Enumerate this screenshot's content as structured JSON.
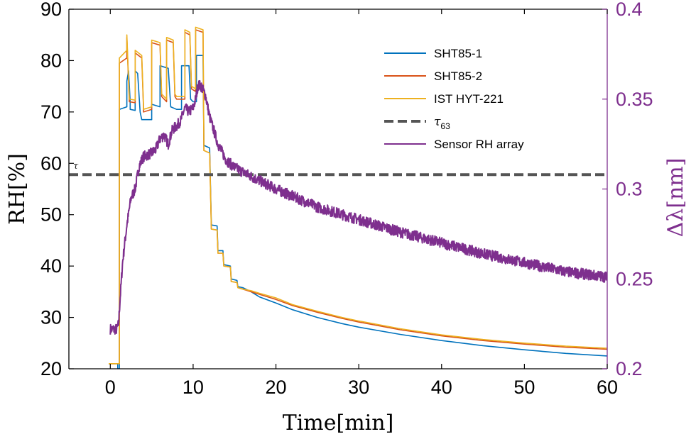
{
  "chart_data": {
    "type": "line",
    "xlabel": "Time[min]",
    "ylabel_left": "RH[%]",
    "ylabel_right": "Δλ[nm]",
    "xlim": [
      -5,
      60
    ],
    "ylim_left": [
      20,
      90
    ],
    "ylim_right": [
      0.2,
      0.4
    ],
    "x_ticks": [
      0,
      10,
      20,
      30,
      40,
      50,
      60
    ],
    "y_ticks_left": [
      20,
      30,
      40,
      50,
      60,
      70,
      80,
      90
    ],
    "y_ticks_right": [
      0.2,
      0.25,
      0.3,
      0.35,
      0.4
    ],
    "y_tick_labels_right": [
      "0.2",
      "0.25",
      "0.3",
      "0.35",
      "0.4"
    ],
    "legend_placement": "top-right",
    "grid": false,
    "annotation": "τ",
    "series": [
      {
        "name": "SHT85-1",
        "axis": "left",
        "color": "#0072bd",
        "points": [
          [
            -0.2,
            21
          ],
          [
            0.9,
            21
          ],
          [
            0.9,
            20
          ],
          [
            1.1,
            20
          ],
          [
            1.1,
            70.5
          ],
          [
            2,
            71
          ],
          [
            2,
            76
          ],
          [
            2.2,
            78
          ],
          [
            2.4,
            72
          ],
          [
            2.4,
            70.5
          ],
          [
            3,
            70.3
          ],
          [
            3,
            78
          ],
          [
            3.3,
            77.5
          ],
          [
            3.6,
            70
          ],
          [
            3.8,
            68.5
          ],
          [
            5,
            68.5
          ],
          [
            5,
            71.5
          ],
          [
            6,
            71
          ],
          [
            6,
            79
          ],
          [
            7,
            78.5
          ],
          [
            7.3,
            71
          ],
          [
            8,
            70.5
          ],
          [
            8.6,
            70.5
          ],
          [
            8.6,
            79
          ],
          [
            9.5,
            79
          ],
          [
            9.7,
            72.5
          ],
          [
            10,
            72
          ],
          [
            10.4,
            72
          ],
          [
            10.4,
            81
          ],
          [
            11.2,
            81
          ],
          [
            11.3,
            63.5
          ],
          [
            12,
            63
          ],
          [
            12.2,
            48
          ],
          [
            12.9,
            47.8
          ],
          [
            13,
            43
          ],
          [
            13.6,
            43
          ],
          [
            13.7,
            40.3
          ],
          [
            14.5,
            40
          ],
          [
            14.6,
            37.5
          ],
          [
            15.3,
            37.2
          ],
          [
            15.4,
            36
          ],
          [
            16,
            35.8
          ],
          [
            17,
            35
          ],
          [
            18,
            34
          ],
          [
            20,
            32.8
          ],
          [
            22,
            31.5
          ],
          [
            25,
            30
          ],
          [
            28,
            28.8
          ],
          [
            30,
            28.1
          ],
          [
            35,
            26.7
          ],
          [
            40,
            25.5
          ],
          [
            45,
            24.5
          ],
          [
            50,
            23.7
          ],
          [
            55,
            23
          ],
          [
            60,
            22.5
          ]
        ]
      },
      {
        "name": "SHT85-2",
        "axis": "left",
        "color": "#d95319",
        "points": [
          [
            -0.2,
            21
          ],
          [
            1.1,
            21
          ],
          [
            1.1,
            79.5
          ],
          [
            2,
            80.5
          ],
          [
            2,
            84.5
          ],
          [
            2.3,
            72
          ],
          [
            3,
            71.8
          ],
          [
            3,
            81.5
          ],
          [
            3.8,
            80.5
          ],
          [
            4,
            71
          ],
          [
            4,
            70
          ],
          [
            5,
            70.5
          ],
          [
            5,
            83.5
          ],
          [
            6,
            83
          ],
          [
            6.2,
            73
          ],
          [
            6.8,
            72
          ],
          [
            6.8,
            84
          ],
          [
            7.6,
            83.5
          ],
          [
            7.8,
            73
          ],
          [
            8,
            72.5
          ],
          [
            9,
            72.5
          ],
          [
            9,
            85.5
          ],
          [
            9.6,
            85
          ],
          [
            9.8,
            74.5
          ],
          [
            10.3,
            74
          ],
          [
            10.3,
            86
          ],
          [
            11.2,
            85.5
          ],
          [
            11.3,
            62.5
          ],
          [
            12,
            62
          ],
          [
            12.2,
            47.2
          ],
          [
            12.9,
            47
          ],
          [
            13,
            42.5
          ],
          [
            13.6,
            42.5
          ],
          [
            13.7,
            40
          ],
          [
            14.5,
            39.8
          ],
          [
            14.6,
            37
          ],
          [
            15.3,
            36.8
          ],
          [
            15.4,
            35.8
          ],
          [
            16,
            35.5
          ],
          [
            17,
            35
          ],
          [
            18,
            34.5
          ],
          [
            20,
            33.5
          ],
          [
            22,
            32.3
          ],
          [
            25,
            31
          ],
          [
            28,
            29.8
          ],
          [
            30,
            29.1
          ],
          [
            35,
            27.6
          ],
          [
            40,
            26.4
          ],
          [
            45,
            25.5
          ],
          [
            50,
            24.8
          ],
          [
            55,
            24.2
          ],
          [
            60,
            23.8
          ]
        ]
      },
      {
        "name": "IST HYT-221",
        "axis": "left",
        "color": "#edb120",
        "points": [
          [
            -0.2,
            21
          ],
          [
            1.1,
            21
          ],
          [
            1.1,
            80.5
          ],
          [
            2,
            82
          ],
          [
            2,
            85
          ],
          [
            2.3,
            72.5
          ],
          [
            3,
            72.3
          ],
          [
            3,
            82
          ],
          [
            3.8,
            81
          ],
          [
            4,
            71.5
          ],
          [
            4,
            70.5
          ],
          [
            5,
            71
          ],
          [
            5,
            84
          ],
          [
            6,
            83.5
          ],
          [
            6.2,
            73.5
          ],
          [
            6.8,
            72.5
          ],
          [
            6.8,
            84.5
          ],
          [
            7.6,
            84
          ],
          [
            7.8,
            73.5
          ],
          [
            8,
            73
          ],
          [
            9,
            73
          ],
          [
            9,
            86
          ],
          [
            9.6,
            85.5
          ],
          [
            9.8,
            75
          ],
          [
            10.3,
            74.5
          ],
          [
            10.3,
            86.5
          ],
          [
            11.2,
            86
          ],
          [
            11.3,
            62.5
          ],
          [
            12,
            62
          ],
          [
            12.2,
            47.2
          ],
          [
            12.9,
            47
          ],
          [
            13,
            42.5
          ],
          [
            13.6,
            42.5
          ],
          [
            13.7,
            40
          ],
          [
            14.5,
            39.8
          ],
          [
            14.6,
            37
          ],
          [
            15.3,
            36.8
          ],
          [
            15.4,
            35.8
          ],
          [
            16,
            35.5
          ],
          [
            17,
            35.2
          ],
          [
            18,
            34.7
          ],
          [
            20,
            33.8
          ],
          [
            22,
            32.5
          ],
          [
            25,
            31.2
          ],
          [
            28,
            30
          ],
          [
            30,
            29.3
          ],
          [
            35,
            27.8
          ],
          [
            40,
            26.6
          ],
          [
            45,
            25.7
          ],
          [
            50,
            25
          ],
          [
            55,
            24.4
          ],
          [
            60,
            24
          ]
        ]
      },
      {
        "name": "τ63",
        "axis": "left",
        "color": "#555555",
        "dashed": true,
        "points": [
          [
            -5,
            57.8
          ],
          [
            60,
            57.8
          ]
        ]
      },
      {
        "name": "Sensor RH array",
        "axis": "right",
        "color": "#7e2f8e",
        "points": [
          [
            0,
            0.222
          ],
          [
            0.8,
            0.222
          ],
          [
            1,
            0.225
          ],
          [
            1.2,
            0.24
          ],
          [
            1.5,
            0.26
          ],
          [
            2,
            0.28
          ],
          [
            2.5,
            0.295
          ],
          [
            3,
            0.3
          ],
          [
            3.5,
            0.313
          ],
          [
            4,
            0.318
          ],
          [
            5,
            0.32
          ],
          [
            5.5,
            0.322
          ],
          [
            6,
            0.328
          ],
          [
            6.5,
            0.33
          ],
          [
            7,
            0.325
          ],
          [
            7.5,
            0.333
          ],
          [
            8,
            0.335
          ],
          [
            8.5,
            0.338
          ],
          [
            9,
            0.345
          ],
          [
            9.5,
            0.343
          ],
          [
            10,
            0.345
          ],
          [
            10.3,
            0.35
          ],
          [
            10.6,
            0.358
          ],
          [
            11,
            0.357
          ],
          [
            11.5,
            0.352
          ],
          [
            12,
            0.34
          ],
          [
            13,
            0.325
          ],
          [
            14,
            0.316
          ],
          [
            15,
            0.312
          ],
          [
            17,
            0.307
          ],
          [
            20,
            0.3
          ],
          [
            25,
            0.29
          ],
          [
            30,
            0.283
          ],
          [
            35,
            0.276
          ],
          [
            40,
            0.27
          ],
          [
            45,
            0.264
          ],
          [
            50,
            0.259
          ],
          [
            55,
            0.254
          ],
          [
            60,
            0.251
          ]
        ]
      }
    ]
  }
}
